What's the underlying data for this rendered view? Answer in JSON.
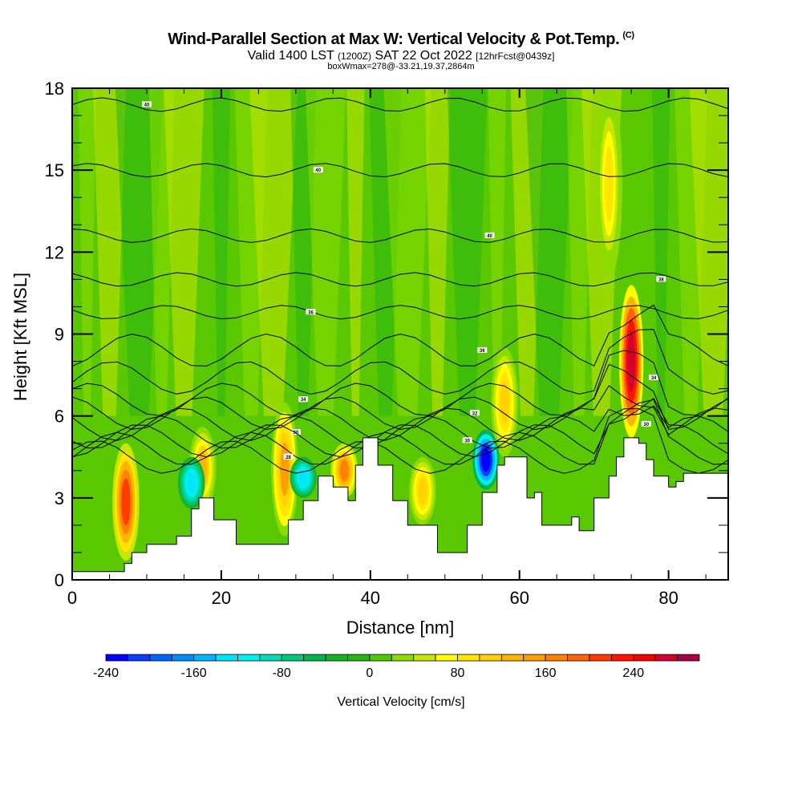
{
  "header": {
    "title": "Wind-Parallel Section at Max W: Vertical Velocity & Pot.Temp.",
    "copyright": "(C)",
    "valid_prefix": "Valid 1400 LST",
    "valid_utc": "(1200Z)",
    "valid_date": "SAT 22 Oct 2022",
    "forecast": "[12hrFcst@0439z]",
    "boxwmax": "boxWmax=278@-33.21,19.37,2864m"
  },
  "chart_data": {
    "type": "heatmap",
    "title": "Wind-Parallel Section at Max W: Vertical Velocity & Pot.Temp.",
    "xlabel": "Distance [nm]",
    "ylabel": "Height [Kft MSL]",
    "xlim": [
      0,
      88
    ],
    "ylim": [
      0,
      18
    ],
    "xticks": [
      0,
      20,
      40,
      60,
      80
    ],
    "yticks": [
      0,
      3,
      6,
      9,
      12,
      15,
      18
    ],
    "x_minor_step": 5,
    "y_minor_step": 1,
    "colorbar": {
      "label": "Vertical Velocity [cm/s]",
      "min": -240,
      "max": 300,
      "step": 20,
      "tick_labels": [
        "-240",
        "-160",
        "-80",
        "0",
        "80",
        "160",
        "240"
      ],
      "tick_values": [
        -240,
        -160,
        -80,
        0,
        80,
        160,
        240
      ],
      "colors": [
        "#0000ff",
        "#0a3cff",
        "#0064ff",
        "#008cff",
        "#00b4ff",
        "#00e6ff",
        "#00f0f0",
        "#00dcb4",
        "#00c878",
        "#00b450",
        "#14b428",
        "#28b414",
        "#50c800",
        "#8cdc00",
        "#c8e600",
        "#ffff00",
        "#ffe600",
        "#ffd200",
        "#ffb400",
        "#ffa000",
        "#ff8200",
        "#ff6400",
        "#ff3c00",
        "#ff1400",
        "#f00000",
        "#d2002d",
        "#aa0046"
      ]
    },
    "contour_labels": [
      "40",
      "40",
      "40",
      "38",
      "36",
      "36",
      "34",
      "34",
      "32",
      "30",
      "30",
      "30",
      "28",
      "28"
    ],
    "terrain_profile_kft": [
      [
        0,
        0.3
      ],
      [
        6,
        0.3
      ],
      [
        7,
        0.6
      ],
      [
        8,
        1.0
      ],
      [
        10,
        1.3
      ],
      [
        14,
        1.6
      ],
      [
        16,
        2.6
      ],
      [
        17,
        3.0
      ],
      [
        19,
        2.2
      ],
      [
        22,
        1.3
      ],
      [
        27,
        1.3
      ],
      [
        29,
        2.2
      ],
      [
        31,
        2.9
      ],
      [
        33,
        3.8
      ],
      [
        35,
        3.4
      ],
      [
        37,
        2.9
      ],
      [
        38,
        4.2
      ],
      [
        39,
        5.2
      ],
      [
        40,
        5.2
      ],
      [
        41,
        4.2
      ],
      [
        43,
        2.9
      ],
      [
        45,
        2.0
      ],
      [
        47,
        2.0
      ],
      [
        49,
        1.0
      ],
      [
        51,
        1.0
      ],
      [
        53,
        2.0
      ],
      [
        55,
        3.2
      ],
      [
        56,
        3.2
      ],
      [
        57,
        4.2
      ],
      [
        58,
        4.5
      ],
      [
        60,
        4.5
      ],
      [
        61,
        3.0
      ],
      [
        62,
        3.2
      ],
      [
        63,
        2.0
      ],
      [
        65,
        2.0
      ],
      [
        67,
        2.3
      ],
      [
        68,
        1.8
      ],
      [
        70,
        3.0
      ],
      [
        72,
        3.8
      ],
      [
        73,
        4.5
      ],
      [
        74,
        5.2
      ],
      [
        75,
        5.2
      ],
      [
        76,
        5.0
      ],
      [
        77,
        4.4
      ],
      [
        78,
        3.8
      ],
      [
        80,
        3.4
      ],
      [
        81,
        3.6
      ],
      [
        82,
        3.9
      ],
      [
        86,
        3.9
      ],
      [
        88,
        3.6
      ]
    ],
    "updrafts": [
      {
        "x": 7.2,
        "bottom_kft": 0.7,
        "top_kft": 5.0,
        "max_cm_s": 200
      },
      {
        "x": 17.5,
        "bottom_kft": 2.6,
        "top_kft": 5.6,
        "max_cm_s": 120
      },
      {
        "x": 28.5,
        "bottom_kft": 1.6,
        "top_kft": 6.5,
        "max_cm_s": 140
      },
      {
        "x": 36.5,
        "bottom_kft": 3.0,
        "top_kft": 5.0,
        "max_cm_s": 160
      },
      {
        "x": 47.0,
        "bottom_kft": 2.0,
        "top_kft": 4.5,
        "max_cm_s": 100
      },
      {
        "x": 58.0,
        "bottom_kft": 4.5,
        "top_kft": 8.5,
        "max_cm_s": 100
      },
      {
        "x": 75.0,
        "bottom_kft": 5.2,
        "top_kft": 10.8,
        "max_cm_s": 278
      },
      {
        "x": 72.0,
        "bottom_kft": 11.0,
        "top_kft": 18.0,
        "max_cm_s": 80
      }
    ],
    "downdrafts": [
      {
        "x": 55.5,
        "bottom_kft": 3.3,
        "top_kft": 5.5,
        "min_cm_s": -240
      },
      {
        "x": 16.0,
        "bottom_kft": 2.6,
        "top_kft": 4.5,
        "min_cm_s": -140
      },
      {
        "x": 31.0,
        "bottom_kft": 3.0,
        "top_kft": 4.5,
        "min_cm_s": -140
      }
    ]
  }
}
